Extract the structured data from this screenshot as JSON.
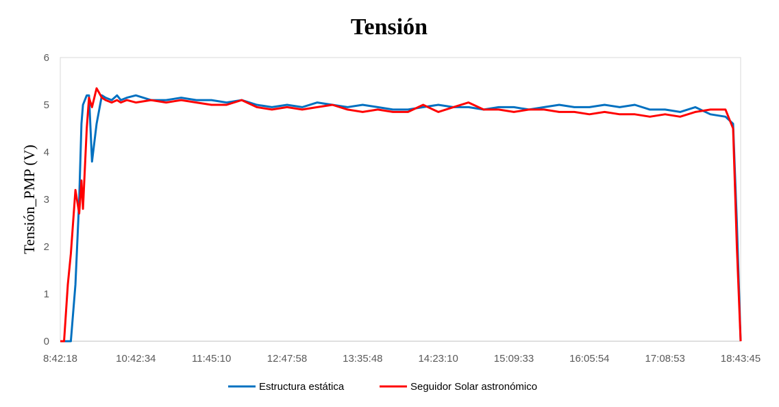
{
  "chart_data": {
    "type": "line",
    "title": "Tensión",
    "xlabel": "",
    "ylabel": "Tensión_PMP (V)",
    "ylim": [
      0,
      6
    ],
    "yticks": [
      "0",
      "1",
      "2",
      "3",
      "4",
      "5",
      "6"
    ],
    "x_tick_labels": [
      "8:42:18",
      "10:42:34",
      "11:45:10",
      "12:47:58",
      "13:35:48",
      "14:23:10",
      "15:09:33",
      "16:05:54",
      "17:08:53",
      "18:43:45"
    ],
    "grid": false,
    "legend_position": "bottom",
    "x": [
      0,
      0.05,
      0.1,
      0.14,
      0.2,
      0.25,
      0.28,
      0.3,
      0.35,
      0.38,
      0.42,
      0.48,
      0.55,
      0.6,
      0.68,
      0.75,
      0.8,
      0.88,
      1.0,
      1.2,
      1.4,
      1.6,
      1.8,
      2.0,
      2.2,
      2.4,
      2.6,
      2.8,
      3.0,
      3.2,
      3.4,
      3.6,
      3.8,
      4.0,
      4.2,
      4.4,
      4.6,
      4.8,
      5.0,
      5.2,
      5.4,
      5.6,
      5.8,
      6.0,
      6.2,
      6.4,
      6.6,
      6.8,
      7.0,
      7.2,
      7.4,
      7.6,
      7.8,
      8.0,
      8.2,
      8.4,
      8.6,
      8.8,
      8.9,
      8.95,
      9.0
    ],
    "series": [
      {
        "name": "Estructura estática",
        "color": "#0070C0",
        "values": [
          0,
          0,
          0,
          0,
          1.2,
          3.0,
          4.6,
          5.0,
          5.2,
          5.2,
          3.8,
          4.6,
          5.2,
          5.15,
          5.1,
          5.2,
          5.1,
          5.15,
          5.2,
          5.1,
          5.1,
          5.15,
          5.1,
          5.1,
          5.05,
          5.1,
          5.0,
          4.95,
          5.0,
          4.95,
          5.05,
          5.0,
          4.95,
          5.0,
          4.95,
          4.9,
          4.9,
          4.95,
          5.0,
          4.95,
          4.95,
          4.9,
          4.95,
          4.95,
          4.9,
          4.95,
          5.0,
          4.95,
          4.95,
          5.0,
          4.95,
          5.0,
          4.9,
          4.9,
          4.85,
          4.95,
          4.8,
          4.75,
          4.6,
          2.5,
          0
        ]
      },
      {
        "name": "Seguidor Solar astronómico",
        "color": "#FF0000",
        "values": [
          0,
          0,
          1.2,
          1.85,
          3.2,
          2.7,
          3.4,
          2.8,
          4.5,
          5.15,
          4.95,
          5.35,
          5.15,
          5.1,
          5.05,
          5.1,
          5.05,
          5.1,
          5.05,
          5.1,
          5.05,
          5.1,
          5.05,
          5.0,
          5.0,
          5.1,
          4.95,
          4.9,
          4.95,
          4.9,
          4.95,
          5.0,
          4.9,
          4.85,
          4.9,
          4.85,
          4.85,
          5.0,
          4.85,
          4.95,
          5.05,
          4.9,
          4.9,
          4.85,
          4.9,
          4.9,
          4.85,
          4.85,
          4.8,
          4.85,
          4.8,
          4.8,
          4.75,
          4.8,
          4.75,
          4.85,
          4.9,
          4.9,
          4.5,
          2.0,
          0
        ]
      }
    ]
  }
}
